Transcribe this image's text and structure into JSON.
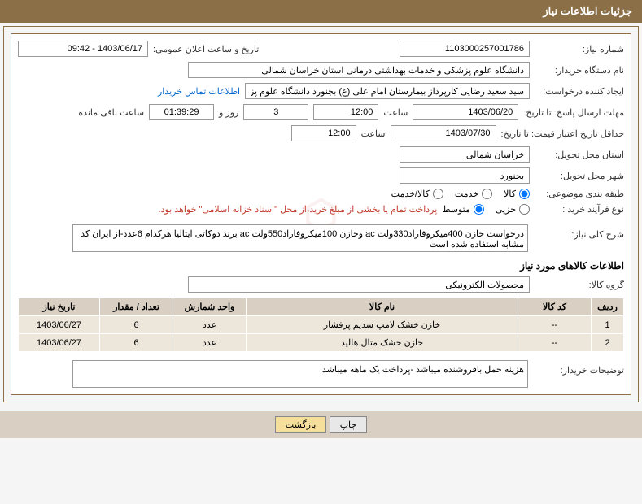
{
  "header": {
    "title": "جزئیات اطلاعات نیاز"
  },
  "fields": {
    "need_number_label": "شماره نیاز:",
    "need_number": "1103000257001786",
    "announce_datetime_label": "تاریخ و ساعت اعلان عمومی:",
    "announce_datetime": "1403/06/17 - 09:42",
    "buyer_org_label": "نام دستگاه خریدار:",
    "buyer_org": "دانشگاه علوم پزشکی و خدمات بهداشتی درمانی استان خراسان شمالی",
    "requester_label": "ایجاد کننده درخواست:",
    "requester": "سید سعید رضایی کارپرداز بیمارستان امام علی (ع) بجنورد دانشگاه علوم پزشکی",
    "contact_link": "اطلاعات تماس خریدار",
    "deadline_label": "مهلت ارسال پاسخ: تا تاریخ:",
    "deadline_date": "1403/06/20",
    "hour_label": "ساعت",
    "deadline_time": "12:00",
    "days_and": "روز و",
    "remaining_days": "3",
    "remaining_time": "01:39:29",
    "remaining_label": "ساعت باقی مانده",
    "validity_label": "حداقل تاریخ اعتبار قیمت: تا تاریخ:",
    "validity_date": "1403/07/30",
    "validity_time": "12:00",
    "delivery_province_label": "استان محل تحویل:",
    "delivery_province": "خراسان شمالی",
    "delivery_city_label": "شهر محل تحویل:",
    "delivery_city": "بجنورد",
    "category_label": "طبقه بندی موضوعی:",
    "process_type_label": "نوع فرآیند خرید :",
    "payment_note": "پرداخت تمام یا بخشی از مبلغ خرید،از محل \"اسناد خزانه اسلامی\" خواهد بود.",
    "summary_label": "شرح کلی نیاز:",
    "summary": "درخواست خازن 400میکروفاراد330ولت ac وخازن 100میکروفاراد550ولت ac برند دوکاتی ایتالیا هرکدام 6عدد-از ایران کد مشابه استفاده شده است",
    "goods_info_title": "اطلاعات کالاهای مورد نیاز",
    "goods_group_label": "گروه کالا:",
    "goods_group": "محصولات الکترونیکی",
    "buyer_notes_label": "توضیحات خریدار:",
    "buyer_notes": "هزینه حمل بافروشنده میباشد -پرداخت یک ماهه میباشد"
  },
  "radios": {
    "category": {
      "options": [
        {
          "label": "کالا",
          "checked": true
        },
        {
          "label": "خدمت",
          "checked": false
        },
        {
          "label": "کالا/خدمت",
          "checked": false
        }
      ]
    },
    "process": {
      "options": [
        {
          "label": "جزیی",
          "checked": false
        },
        {
          "label": "متوسط",
          "checked": true
        }
      ]
    }
  },
  "table": {
    "headers": [
      "ردیف",
      "کد کالا",
      "نام کالا",
      "واحد شمارش",
      "تعداد / مقدار",
      "تاریخ نیاز"
    ],
    "rows": [
      [
        "1",
        "--",
        "خازن خشک لامپ سدیم پرفشار",
        "عدد",
        "6",
        "1403/06/27"
      ],
      [
        "2",
        "--",
        "خازن خشک متال هالید",
        "عدد",
        "6",
        "1403/06/27"
      ]
    ],
    "col_widths": [
      "40px",
      "90px",
      "auto",
      "90px",
      "90px",
      "100px"
    ]
  },
  "buttons": {
    "print": "چاپ",
    "back": "بازگشت"
  },
  "colors": {
    "header_bg": "#8b6f47",
    "th_bg": "#d9d0c3",
    "td_bg": "#ece6db",
    "link": "#0066cc",
    "note_red": "#c0392b"
  }
}
